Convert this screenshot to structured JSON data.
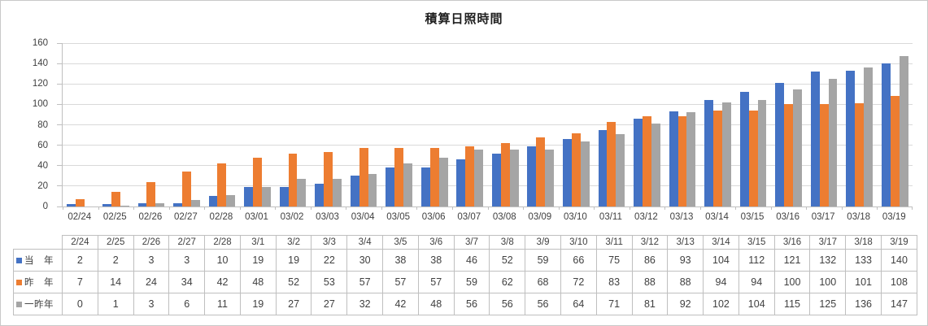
{
  "chart_data": {
    "type": "bar",
    "title": "積算日照時間",
    "categories": [
      "02/24",
      "02/25",
      "02/26",
      "02/27",
      "02/28",
      "03/01",
      "03/02",
      "03/03",
      "03/04",
      "03/05",
      "03/06",
      "03/07",
      "03/08",
      "03/09",
      "03/10",
      "03/11",
      "03/12",
      "03/13",
      "03/14",
      "03/15",
      "03/16",
      "03/17",
      "03/18",
      "03/19"
    ],
    "series": [
      {
        "id": "this-year",
        "name": "当　年",
        "color": "#4472C4",
        "values": [
          2,
          2,
          3,
          3,
          10,
          19,
          19,
          22,
          30,
          38,
          38,
          46,
          52,
          59,
          66,
          75,
          86,
          93,
          104,
          112,
          121,
          132,
          133,
          140
        ]
      },
      {
        "id": "last-year",
        "name": "昨　年",
        "color": "#ED7D31",
        "values": [
          7,
          14,
          24,
          34,
          42,
          48,
          52,
          53,
          57,
          57,
          57,
          59,
          62,
          68,
          72,
          83,
          88,
          88,
          94,
          94,
          100,
          100,
          101,
          108
        ]
      },
      {
        "id": "two-years-ago",
        "name": "一昨年",
        "color": "#A5A5A5",
        "values": [
          0,
          1,
          3,
          6,
          11,
          19,
          27,
          27,
          32,
          42,
          48,
          56,
          56,
          56,
          64,
          71,
          81,
          92,
          102,
          104,
          115,
          125,
          136,
          147
        ]
      }
    ],
    "xlabel": "",
    "ylabel": "",
    "ylim": [
      0,
      160
    ],
    "y_ticks": [
      0,
      20,
      40,
      60,
      80,
      100,
      120,
      140,
      160
    ],
    "grid": true,
    "grid_color": "#D9D9D9",
    "axis_color": "#BFBFBF",
    "legend_position": "data-table-left"
  },
  "table": {
    "date_headers": [
      "2/24",
      "2/25",
      "2/26",
      "2/27",
      "2/28",
      "3/1",
      "3/2",
      "3/3",
      "3/4",
      "3/5",
      "3/6",
      "3/7",
      "3/8",
      "3/9",
      "3/10",
      "3/11",
      "3/12",
      "3/13",
      "3/14",
      "3/15",
      "3/16",
      "3/17",
      "3/18",
      "3/19"
    ]
  }
}
